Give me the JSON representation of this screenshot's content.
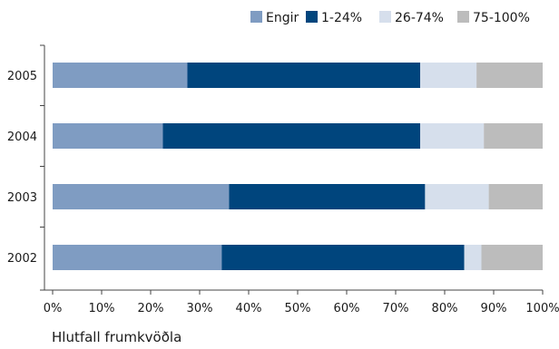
{
  "chart_data": {
    "type": "bar",
    "orientation": "horizontal",
    "stacked": true,
    "categories": [
      "2005",
      "2004",
      "2003",
      "2002"
    ],
    "series": [
      {
        "name": "Engir",
        "color": "#7f9cc2",
        "values": [
          27.5,
          22.5,
          36.0,
          34.5
        ]
      },
      {
        "name": "1-24%",
        "color": "#00457d",
        "values": [
          47.5,
          52.5,
          40.0,
          49.5
        ]
      },
      {
        "name": "26-74%",
        "color": "#d6dfec",
        "values": [
          11.5,
          13.0,
          13.0,
          3.5
        ]
      },
      {
        "name": "75-100%",
        "color": "#bcbcbc",
        "values": [
          13.5,
          12.0,
          11.0,
          12.5
        ]
      }
    ],
    "xlabel": "Hlutfall frumkvöðla",
    "xlim": [
      0,
      100
    ],
    "xticks": [
      "0%",
      "10%",
      "20%",
      "30%",
      "40%",
      "50%",
      "60%",
      "70%",
      "80%",
      "90%",
      "100%"
    ],
    "grid": false,
    "legend_position": "top-right"
  }
}
